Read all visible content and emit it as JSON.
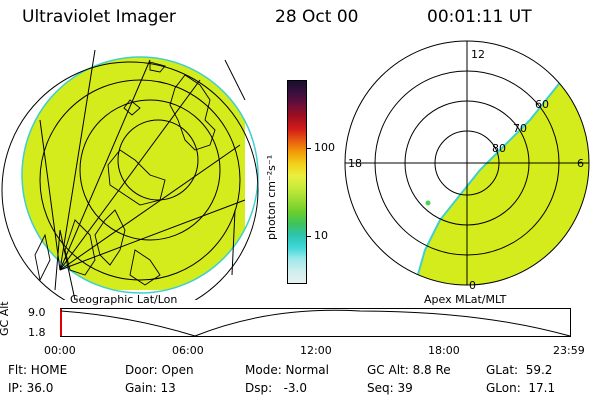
{
  "header": {
    "title": "Ultraviolet Imager",
    "date": "28 Oct 00",
    "time": "00:01:11 UT"
  },
  "colorbar": {
    "unit_label": "photon cm⁻²s⁻¹",
    "tick_high": "100",
    "tick_low": "10",
    "colors": [
      "#1a0f2e",
      "#3a0f3f",
      "#6a0f3a",
      "#a00f1f",
      "#d01a1a",
      "#e85a10",
      "#f29c08",
      "#f2d21a",
      "#e8f040",
      "#c8ea3a",
      "#9ddc33",
      "#6ccf2c",
      "#3ec45a",
      "#2dc4b0",
      "#3fd8d8",
      "#9fe9ea",
      "#cfeeee",
      "#e6f0f0"
    ]
  },
  "left_map": {
    "caption": "Geographic Lat/Lon",
    "fill_color": "#d5ec1c"
  },
  "right_map": {
    "caption": "Apex MLat/MLT",
    "mlt_labels": {
      "top": "12",
      "left": "18",
      "right": "6",
      "bottom": "0"
    },
    "lat_labels": [
      "80",
      "70",
      "60"
    ],
    "fill_color": "#d5ec1c"
  },
  "timeline": {
    "ylabel": "GC Alt",
    "y_high": "9.0",
    "y_low": "1.8",
    "x_ticks": [
      "00:00",
      "06:00",
      "12:00",
      "18:00",
      "23:59"
    ]
  },
  "status": {
    "row1": {
      "flt": "Flt: HOME",
      "door": "Door: Open",
      "mode": "Mode: Normal",
      "gcalt": "GC Alt: 8.8 Re",
      "glat": "GLat:  59.2"
    },
    "row2": {
      "ip": "IP: 36.0",
      "gain": "Gain: 13",
      "dsp": "Dsp:   -3.0",
      "seq": "Seq: 39",
      "glon": "GLon:  17.1"
    }
  }
}
